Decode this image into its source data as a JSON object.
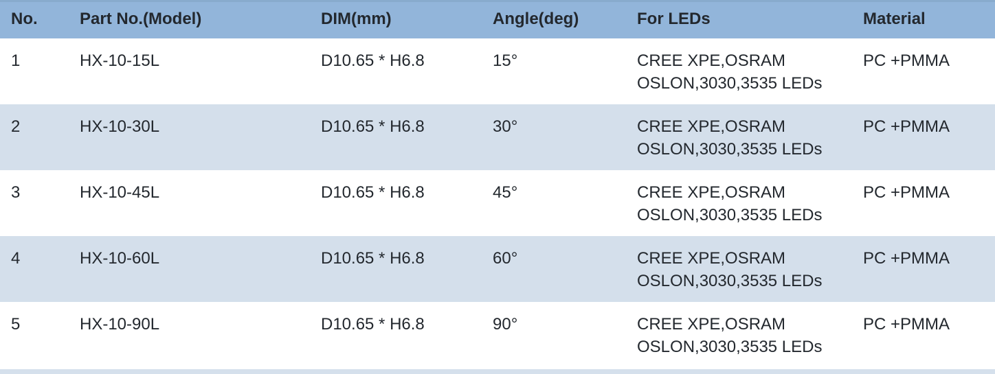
{
  "colors": {
    "header_bg": "#92B5DA",
    "header_top_edge": "#88ABCD",
    "alt_row_bg": "#D4DFEB",
    "bottom_strip_bg": "#D5E0EC",
    "text": "#23282E"
  },
  "table": {
    "columns": [
      {
        "key": "no",
        "label": "No."
      },
      {
        "key": "part",
        "label": "Part No.(Model)"
      },
      {
        "key": "dim",
        "label": "DIM(mm)"
      },
      {
        "key": "angle",
        "label": "Angle(deg)"
      },
      {
        "key": "leds",
        "label": "For LEDs"
      },
      {
        "key": "material",
        "label": "Material"
      }
    ],
    "rows": [
      {
        "no": "1",
        "part": "HX-10-15L",
        "dim": "D10.65 * H6.8",
        "angle": "15°",
        "leds": [
          "CREE XPE,OSRAM",
          "OSLON,3030,3535 LEDs"
        ],
        "material": "PC +PMMA"
      },
      {
        "no": "2",
        "part": "HX-10-30L",
        "dim": "D10.65 * H6.8",
        "angle": "30°",
        "leds": [
          "CREE XPE,OSRAM",
          "OSLON,3030,3535 LEDs"
        ],
        "material": "PC +PMMA"
      },
      {
        "no": "3",
        "part": "HX-10-45L",
        "dim": "D10.65 * H6.8",
        "angle": "45°",
        "leds": [
          "CREE XPE,OSRAM",
          "OSLON,3030,3535 LEDs"
        ],
        "material": "PC +PMMA"
      },
      {
        "no": "4",
        "part": "HX-10-60L",
        "dim": "D10.65 * H6.8",
        "angle": "60°",
        "leds": [
          "CREE XPE,OSRAM",
          "OSLON,3030,3535 LEDs"
        ],
        "material": "PC +PMMA"
      },
      {
        "no": "5",
        "part": "HX-10-90L",
        "dim": "D10.65 * H6.8",
        "angle": "90°",
        "leds": [
          "CREE XPE,OSRAM",
          "OSLON,3030,3535 LEDs"
        ],
        "material": "PC +PMMA"
      }
    ]
  }
}
